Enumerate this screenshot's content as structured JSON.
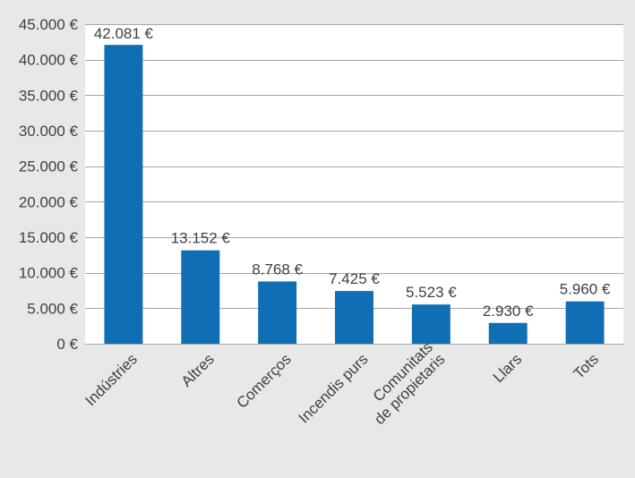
{
  "chart_data": {
    "type": "bar",
    "categories": [
      [
        "Indústries"
      ],
      [
        "Altres"
      ],
      [
        "Comerços"
      ],
      [
        "Incendis purs"
      ],
      [
        "Comunitats",
        "de propietaris"
      ],
      [
        "Llars"
      ],
      [
        "Tots"
      ]
    ],
    "values": [
      42081,
      13152,
      8768,
      7425,
      5523,
      2930,
      5960
    ],
    "data_labels": [
      "42.081 €",
      "13.152 €",
      "8.768 €",
      "7.425 €",
      "5.523 €",
      "2.930 €",
      "5.960 €"
    ],
    "title": "",
    "xlabel": "",
    "ylabel": "",
    "ylim": [
      0,
      45000
    ],
    "yticks": [
      0,
      5000,
      10000,
      15000,
      20000,
      25000,
      30000,
      35000,
      40000,
      45000
    ],
    "ytick_labels": [
      "0 €",
      "5.000 €",
      "10.000 €",
      "15.000 €",
      "20.000 €",
      "25.000 €",
      "30.000 €",
      "35.000 €",
      "40.000 €",
      "45.000 €"
    ],
    "grid": true,
    "legend": "none",
    "colors": {
      "bar": "#0f6eb4",
      "plot_background": "#ffffff",
      "page_background": "#e8e8e8",
      "gridline": "#a6a6a6",
      "text": "#404040"
    }
  }
}
